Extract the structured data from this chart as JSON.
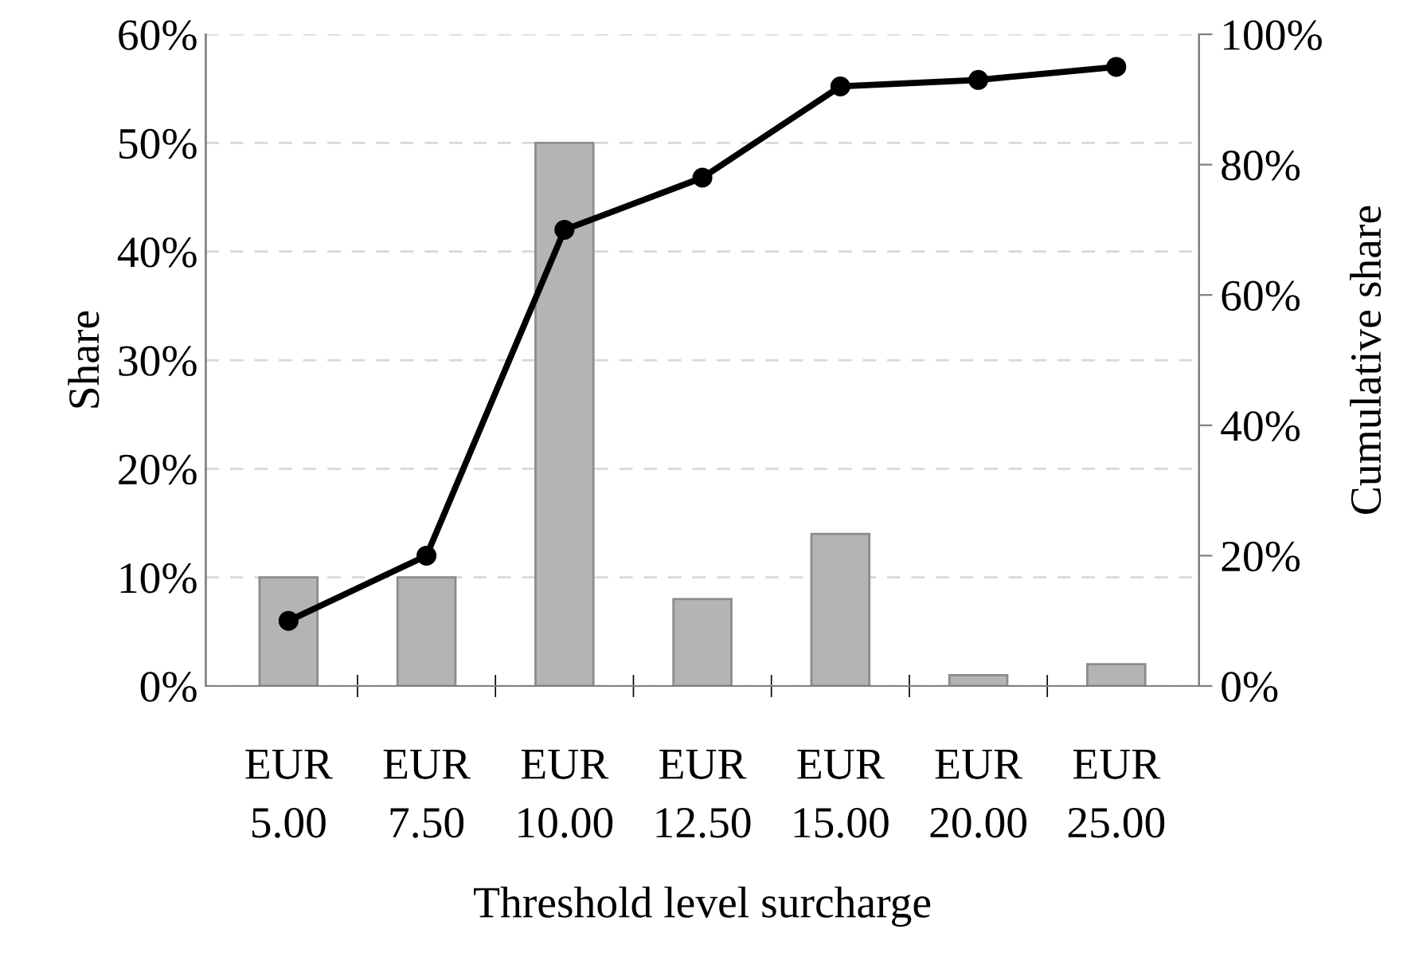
{
  "chart_data": {
    "type": "bar",
    "xlabel": "Threshold level surcharge",
    "ylabel": "Share",
    "y2label": "Cumulative share",
    "categories": [
      "EUR\n5.00",
      "EUR\n7.50",
      "EUR\n10.00",
      "EUR\n12.50",
      "EUR\n15.00",
      "EUR\n20.00",
      "EUR\n25.00"
    ],
    "series": [
      {
        "color": "#b4b4b4",
        "values": [
          10,
          10,
          50,
          8,
          14,
          1,
          2
        ]
      },
      {
        "type": "line",
        "axis": "y2",
        "color": "#000000",
        "values": [
          10,
          20,
          70,
          78,
          92,
          93,
          95
        ]
      }
    ],
    "ylim": [
      0,
      60
    ],
    "yticks": [
      {
        "value": 0,
        "label": "0%"
      },
      {
        "value": 10,
        "label": "10%"
      },
      {
        "value": 20,
        "label": "20%"
      },
      {
        "value": 30,
        "label": "30%"
      },
      {
        "value": 40,
        "label": "40%"
      },
      {
        "value": 50,
        "label": "50%"
      },
      {
        "value": 60,
        "label": "60%"
      }
    ],
    "y2lim": [
      0,
      100
    ],
    "y2ticks": [
      {
        "value": 0,
        "label": "0%"
      },
      {
        "value": 20,
        "label": "20%"
      },
      {
        "value": 40,
        "label": "40%"
      },
      {
        "value": 60,
        "label": "60%"
      },
      {
        "value": 80,
        "label": "80%"
      },
      {
        "value": 100,
        "label": "100%"
      }
    ],
    "grid": "y",
    "marker": "circle",
    "line_style": "solid",
    "legend": false
  }
}
